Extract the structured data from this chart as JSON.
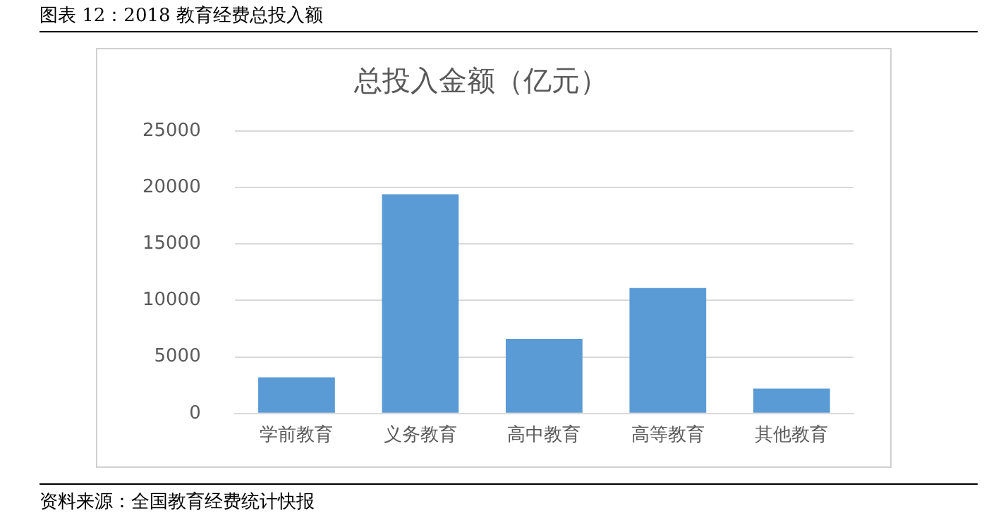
{
  "chart_data": {
    "type": "bar",
    "title": "总投入金额（亿元）",
    "categories": [
      "学前教育",
      "义务教育",
      "高中教育",
      "高等教育",
      "其他教育"
    ],
    "values": [
      3200,
      19400,
      6600,
      11100,
      2200
    ],
    "color": "#5b9bd5",
    "ylim": [
      0,
      25000
    ],
    "yticks": [
      0,
      5000,
      10000,
      15000,
      20000,
      25000
    ],
    "grid": "y",
    "annotations": [
      "图表 12：2018 教育经费总投入额",
      "资料来源：全国教育经费统计快报"
    ]
  }
}
